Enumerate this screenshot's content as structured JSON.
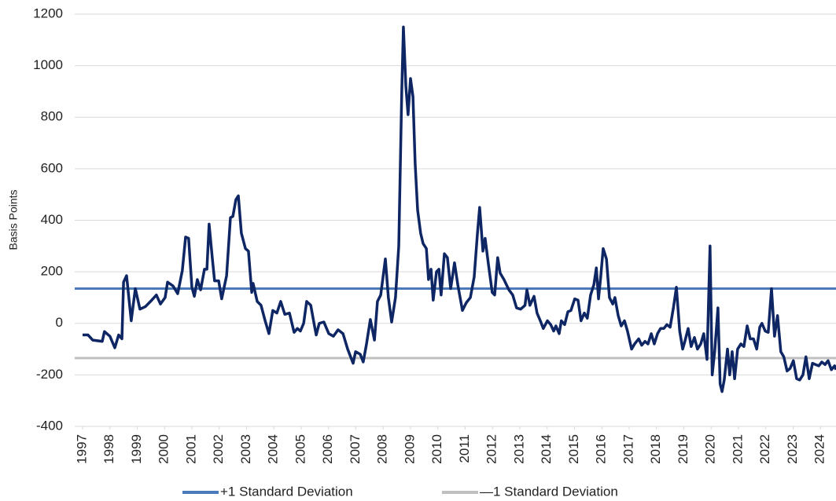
{
  "chart_data": {
    "type": "line",
    "y_label": "Basis Points",
    "x": [
      1997.0,
      1997.2,
      1997.37,
      1997.72,
      1997.8,
      1998.0,
      1998.18,
      1998.32,
      1998.44,
      1998.5,
      1998.61,
      1998.78,
      1998.93,
      1999.1,
      1999.3,
      1999.53,
      1999.7,
      1999.85,
      2000.02,
      2000.11,
      2000.31,
      2000.48,
      2000.65,
      2000.77,
      2000.88,
      2001.0,
      2001.09,
      2001.2,
      2001.32,
      2001.46,
      2001.55,
      2001.63,
      2001.75,
      2001.83,
      2001.98,
      2002.09,
      2002.27,
      2002.41,
      2002.5,
      2002.61,
      2002.7,
      2002.81,
      2002.96,
      2003.07,
      2003.19,
      2003.24,
      2003.39,
      2003.53,
      2003.68,
      2003.82,
      2003.96,
      2004.11,
      2004.25,
      2004.4,
      2004.57,
      2004.74,
      2004.86,
      2004.97,
      2005.09,
      2005.2,
      2005.35,
      2005.46,
      2005.55,
      2005.66,
      2005.83,
      2006.01,
      2006.18,
      2006.35,
      2006.53,
      2006.7,
      2006.9,
      2006.99,
      2007.16,
      2007.27,
      2007.39,
      2007.53,
      2007.68,
      2007.79,
      2007.91,
      2008.08,
      2008.19,
      2008.31,
      2008.45,
      2008.57,
      2008.68,
      2008.74,
      2008.83,
      2008.91,
      2009.0,
      2009.09,
      2009.17,
      2009.26,
      2009.37,
      2009.46,
      2009.58,
      2009.66,
      2009.75,
      2009.83,
      2009.95,
      2010.04,
      2010.12,
      2010.24,
      2010.35,
      2010.47,
      2010.61,
      2010.73,
      2010.9,
      2011.04,
      2011.19,
      2011.33,
      2011.45,
      2011.53,
      2011.65,
      2011.73,
      2011.85,
      2011.99,
      2012.08,
      2012.19,
      2012.28,
      2012.42,
      2012.6,
      2012.74,
      2012.88,
      2013.03,
      2013.19,
      2013.26,
      2013.37,
      2013.52,
      2013.63,
      2013.75,
      2013.86,
      2014.01,
      2014.13,
      2014.24,
      2014.32,
      2014.44,
      2014.52,
      2014.64,
      2014.76,
      2014.87,
      2015.01,
      2015.13,
      2015.24,
      2015.36,
      2015.47,
      2015.59,
      2015.71,
      2015.8,
      2015.88,
      2015.96,
      2016.05,
      2016.17,
      2016.28,
      2016.4,
      2016.48,
      2016.6,
      2016.71,
      2016.83,
      2016.94,
      2017.09,
      2017.2,
      2017.35,
      2017.46,
      2017.58,
      2017.69,
      2017.81,
      2017.92,
      2018.04,
      2018.15,
      2018.27,
      2018.38,
      2018.5,
      2018.62,
      2018.73,
      2018.85,
      2018.96,
      2019.04,
      2019.16,
      2019.27,
      2019.39,
      2019.5,
      2019.62,
      2019.73,
      2019.85,
      2019.96,
      2020.04,
      2020.13,
      2020.25,
      2020.33,
      2020.4,
      2020.48,
      2020.6,
      2020.68,
      2020.77,
      2020.86,
      2020.97,
      2021.09,
      2021.2,
      2021.32,
      2021.43,
      2021.55,
      2021.67,
      2021.78,
      2021.86,
      2021.98,
      2022.09,
      2022.21,
      2022.32,
      2022.43,
      2022.55,
      2022.66,
      2022.78,
      2022.89,
      2023.01,
      2023.13,
      2023.24,
      2023.36,
      2023.47,
      2023.59,
      2023.71,
      2023.82,
      2023.94,
      2024.05,
      2024.17,
      2024.28,
      2024.4,
      2024.52,
      2024.57
    ],
    "series": [
      {
        "color": "#0e2663",
        "values": [
          -45,
          -45,
          -65,
          -70,
          -32,
          -50,
          -95,
          -45,
          -60,
          160,
          185,
          10,
          135,
          55,
          65,
          90,
          110,
          75,
          100,
          160,
          145,
          115,
          205,
          335,
          330,
          140,
          105,
          170,
          130,
          210,
          210,
          385,
          250,
          165,
          165,
          95,
          185,
          410,
          415,
          480,
          495,
          350,
          290,
          280,
          120,
          155,
          85,
          70,
          10,
          -40,
          50,
          40,
          85,
          35,
          40,
          -35,
          -20,
          -30,
          0,
          85,
          70,
          5,
          -45,
          0,
          5,
          -40,
          -50,
          -25,
          -40,
          -100,
          -155,
          -110,
          -120,
          -150,
          -80,
          15,
          -65,
          85,
          110,
          250,
          100,
          5,
          100,
          300,
          900,
          1150,
          920,
          810,
          950,
          880,
          620,
          440,
          350,
          310,
          290,
          170,
          210,
          90,
          200,
          210,
          110,
          270,
          255,
          135,
          235,
          150,
          50,
          80,
          100,
          180,
          350,
          450,
          280,
          330,
          230,
          120,
          110,
          255,
          195,
          170,
          130,
          110,
          60,
          55,
          70,
          130,
          70,
          105,
          40,
          10,
          -20,
          10,
          -5,
          -30,
          -10,
          -40,
          10,
          -5,
          45,
          50,
          95,
          90,
          10,
          40,
          20,
          110,
          150,
          215,
          95,
          180,
          290,
          250,
          100,
          75,
          100,
          30,
          -10,
          10,
          -30,
          -100,
          -80,
          -60,
          -85,
          -70,
          -80,
          -40,
          -80,
          -40,
          -20,
          -20,
          -5,
          -15,
          60,
          140,
          -30,
          -100,
          -70,
          -20,
          -90,
          -55,
          -100,
          -80,
          -40,
          -140,
          300,
          -200,
          -110,
          60,
          -235,
          -265,
          -220,
          -100,
          -200,
          -110,
          -215,
          -100,
          -80,
          -90,
          -10,
          -60,
          -60,
          -100,
          -15,
          0,
          -30,
          -35,
          135,
          -50,
          30,
          -110,
          -130,
          -185,
          -175,
          -145,
          -215,
          -220,
          -200,
          -130,
          -215,
          -155,
          -160,
          -165,
          -150,
          -160,
          -145,
          -180,
          -165,
          -180
        ]
      }
    ],
    "reference_lines": [
      {
        "name": "+1 Standard Deviation",
        "color": "#4a7ab9",
        "value": 135
      },
      {
        "name": "—1 Standard Deviation",
        "color": "#c0c0c0",
        "value": -135
      }
    ],
    "xlim": [
      1997,
      2024.57
    ],
    "xticks": [
      1997,
      1998,
      1999,
      2000,
      2001,
      2002,
      2003,
      2004,
      2005,
      2006,
      2007,
      2008,
      2009,
      2010,
      2011,
      2012,
      2013,
      2014,
      2015,
      2016,
      2017,
      2018,
      2019,
      2020,
      2021,
      2022,
      2023,
      2024
    ],
    "ylim": [
      -400,
      1200
    ],
    "yticks": [
      -400,
      -200,
      0,
      200,
      400,
      600,
      800,
      1000,
      1200
    ],
    "grid": true
  }
}
